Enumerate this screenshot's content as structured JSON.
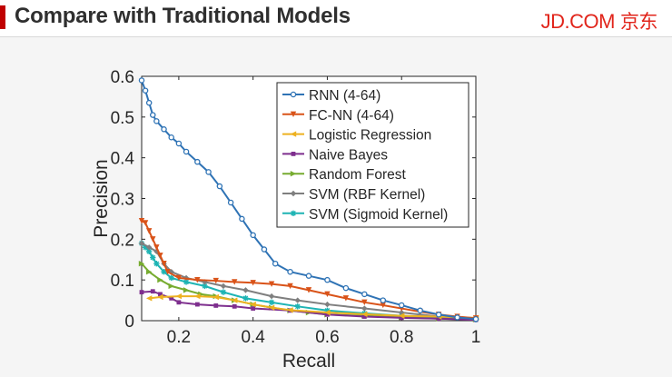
{
  "header": {
    "title": "Compare with Traditional Models",
    "logo_text": "JD.COM",
    "logo_cn": "京东",
    "accent_color": "#c00000",
    "logo_color": "#e1251b"
  },
  "chart_data": {
    "type": "line",
    "title": "",
    "xlabel": "Recall",
    "ylabel": "Precision",
    "xlim": [
      0.1,
      1.0
    ],
    "ylim": [
      0,
      0.6
    ],
    "xticks": [
      0.2,
      0.4,
      0.6,
      0.8,
      1
    ],
    "xtick_labels": [
      "0.2",
      "0.4",
      "0.6",
      "0.8",
      "1"
    ],
    "yticks": [
      0,
      0.1,
      0.2,
      0.3,
      0.4,
      0.5,
      0.6
    ],
    "ytick_labels": [
      "0",
      "0.1",
      "0.2",
      "0.3",
      "0.4",
      "0.5",
      "0.6"
    ],
    "legend_position": "top-right",
    "series": [
      {
        "name": "RNN (4-64)",
        "color": "#2f73b5",
        "marker": "circle",
        "x": [
          0.1,
          0.11,
          0.12,
          0.13,
          0.14,
          0.16,
          0.18,
          0.2,
          0.22,
          0.25,
          0.28,
          0.31,
          0.34,
          0.37,
          0.4,
          0.43,
          0.46,
          0.5,
          0.55,
          0.6,
          0.65,
          0.7,
          0.75,
          0.8,
          0.85,
          0.9,
          0.95,
          1.0
        ],
        "y": [
          0.59,
          0.565,
          0.535,
          0.505,
          0.49,
          0.47,
          0.45,
          0.435,
          0.415,
          0.39,
          0.365,
          0.33,
          0.29,
          0.25,
          0.21,
          0.175,
          0.14,
          0.12,
          0.11,
          0.1,
          0.08,
          0.065,
          0.05,
          0.038,
          0.025,
          0.015,
          0.008,
          0.004
        ]
      },
      {
        "name": "FC-NN (4-64)",
        "color": "#d95319",
        "marker": "triangle-down",
        "x": [
          0.1,
          0.11,
          0.12,
          0.13,
          0.14,
          0.15,
          0.16,
          0.17,
          0.2,
          0.25,
          0.3,
          0.35,
          0.4,
          0.45,
          0.5,
          0.55,
          0.6,
          0.65,
          0.7,
          0.75,
          0.8,
          0.85,
          0.9,
          0.95,
          1.0
        ],
        "y": [
          0.245,
          0.24,
          0.22,
          0.2,
          0.18,
          0.16,
          0.14,
          0.12,
          0.105,
          0.1,
          0.098,
          0.095,
          0.093,
          0.09,
          0.085,
          0.075,
          0.065,
          0.055,
          0.045,
          0.038,
          0.03,
          0.022,
          0.015,
          0.01,
          0.006
        ]
      },
      {
        "name": "Logistic Regression",
        "color": "#edb120",
        "marker": "triangle-left",
        "x": [
          0.12,
          0.15,
          0.2,
          0.25,
          0.3,
          0.35,
          0.4,
          0.45,
          0.5,
          0.6,
          0.7,
          0.8,
          0.9,
          1.0
        ],
        "y": [
          0.055,
          0.058,
          0.06,
          0.06,
          0.058,
          0.05,
          0.04,
          0.032,
          0.026,
          0.02,
          0.016,
          0.012,
          0.01,
          0.007
        ]
      },
      {
        "name": "Naive Bayes",
        "color": "#7e2f8e",
        "marker": "square",
        "x": [
          0.1,
          0.13,
          0.15,
          0.18,
          0.2,
          0.25,
          0.3,
          0.35,
          0.4,
          0.5,
          0.6,
          0.7,
          0.8,
          0.9,
          1.0
        ],
        "y": [
          0.07,
          0.072,
          0.065,
          0.055,
          0.045,
          0.04,
          0.037,
          0.035,
          0.03,
          0.025,
          0.015,
          0.01,
          0.007,
          0.005,
          0.002
        ]
      },
      {
        "name": "Random Forest",
        "color": "#77ac30",
        "marker": "triangle-right",
        "x": [
          0.1,
          0.12,
          0.15,
          0.18,
          0.22,
          0.26,
          0.3,
          0.35,
          0.4,
          0.45,
          0.5,
          0.55,
          0.6,
          0.7,
          0.8,
          0.9,
          1.0
        ],
        "y": [
          0.14,
          0.12,
          0.1,
          0.085,
          0.075,
          0.065,
          0.06,
          0.05,
          0.04,
          0.032,
          0.025,
          0.02,
          0.015,
          0.012,
          0.008,
          0.005,
          0.003
        ]
      },
      {
        "name": "SVM (RBF Kernel)",
        "color": "#7f7f7f",
        "marker": "diamond",
        "x": [
          0.1,
          0.12,
          0.14,
          0.16,
          0.18,
          0.22,
          0.27,
          0.32,
          0.38,
          0.45,
          0.52,
          0.6,
          0.7,
          0.8,
          0.9,
          1.0
        ],
        "y": [
          0.19,
          0.18,
          0.17,
          0.14,
          0.12,
          0.105,
          0.095,
          0.085,
          0.075,
          0.06,
          0.05,
          0.04,
          0.03,
          0.02,
          0.01,
          0.005
        ]
      },
      {
        "name": "SVM (Sigmoid Kernel)",
        "color": "#1eb4b4",
        "marker": "star",
        "x": [
          0.1,
          0.11,
          0.12,
          0.13,
          0.14,
          0.16,
          0.18,
          0.22,
          0.27,
          0.32,
          0.38,
          0.45,
          0.52,
          0.6,
          0.7,
          0.8,
          0.9,
          1.0
        ],
        "y": [
          0.19,
          0.18,
          0.17,
          0.155,
          0.14,
          0.12,
          0.105,
          0.095,
          0.085,
          0.07,
          0.055,
          0.045,
          0.035,
          0.025,
          0.018,
          0.012,
          0.007,
          0.003
        ]
      }
    ]
  }
}
